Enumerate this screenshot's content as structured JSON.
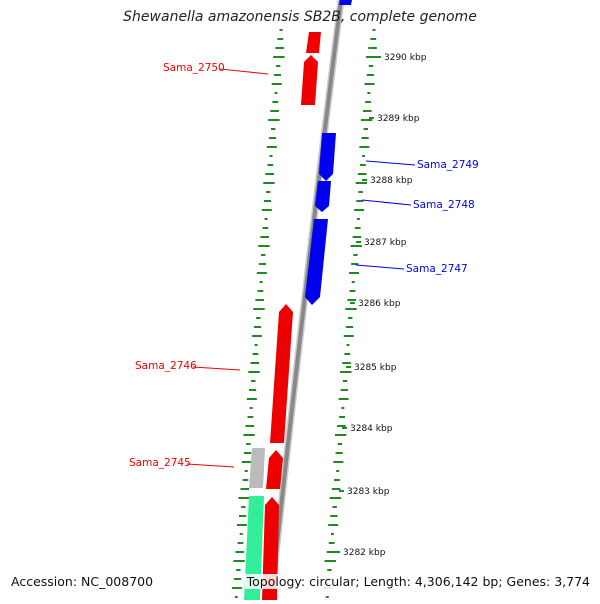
{
  "title": "Shewanella amazonensis SB2B, complete genome",
  "accession": "Accession: NC_008700",
  "topology": "Topology: circular; Length: 4,306,142 bp; Genes: 3,774",
  "colors": {
    "forward": "#ee0000",
    "reverse": "#0000ee",
    "other": "#bbbbbb",
    "rna": "#33ee99",
    "gc": "#228822",
    "backbone": "#888888"
  },
  "ticks": [
    "3290 kbp",
    "3289 kbp",
    "3288 kbp",
    "3287 kbp",
    "3286 kbp",
    "3285 kbp",
    "3284 kbp",
    "3283 kbp",
    "3282 kbp"
  ],
  "gene_labels": [
    {
      "name": "Sama_2750",
      "strand": "forward"
    },
    {
      "name": "Sama_2749",
      "strand": "reverse"
    },
    {
      "name": "Sama_2748",
      "strand": "reverse"
    },
    {
      "name": "Sama_2747",
      "strand": "reverse"
    },
    {
      "name": "Sama_2746",
      "strand": "forward"
    },
    {
      "name": "Sama_2745",
      "strand": "forward"
    }
  ]
}
